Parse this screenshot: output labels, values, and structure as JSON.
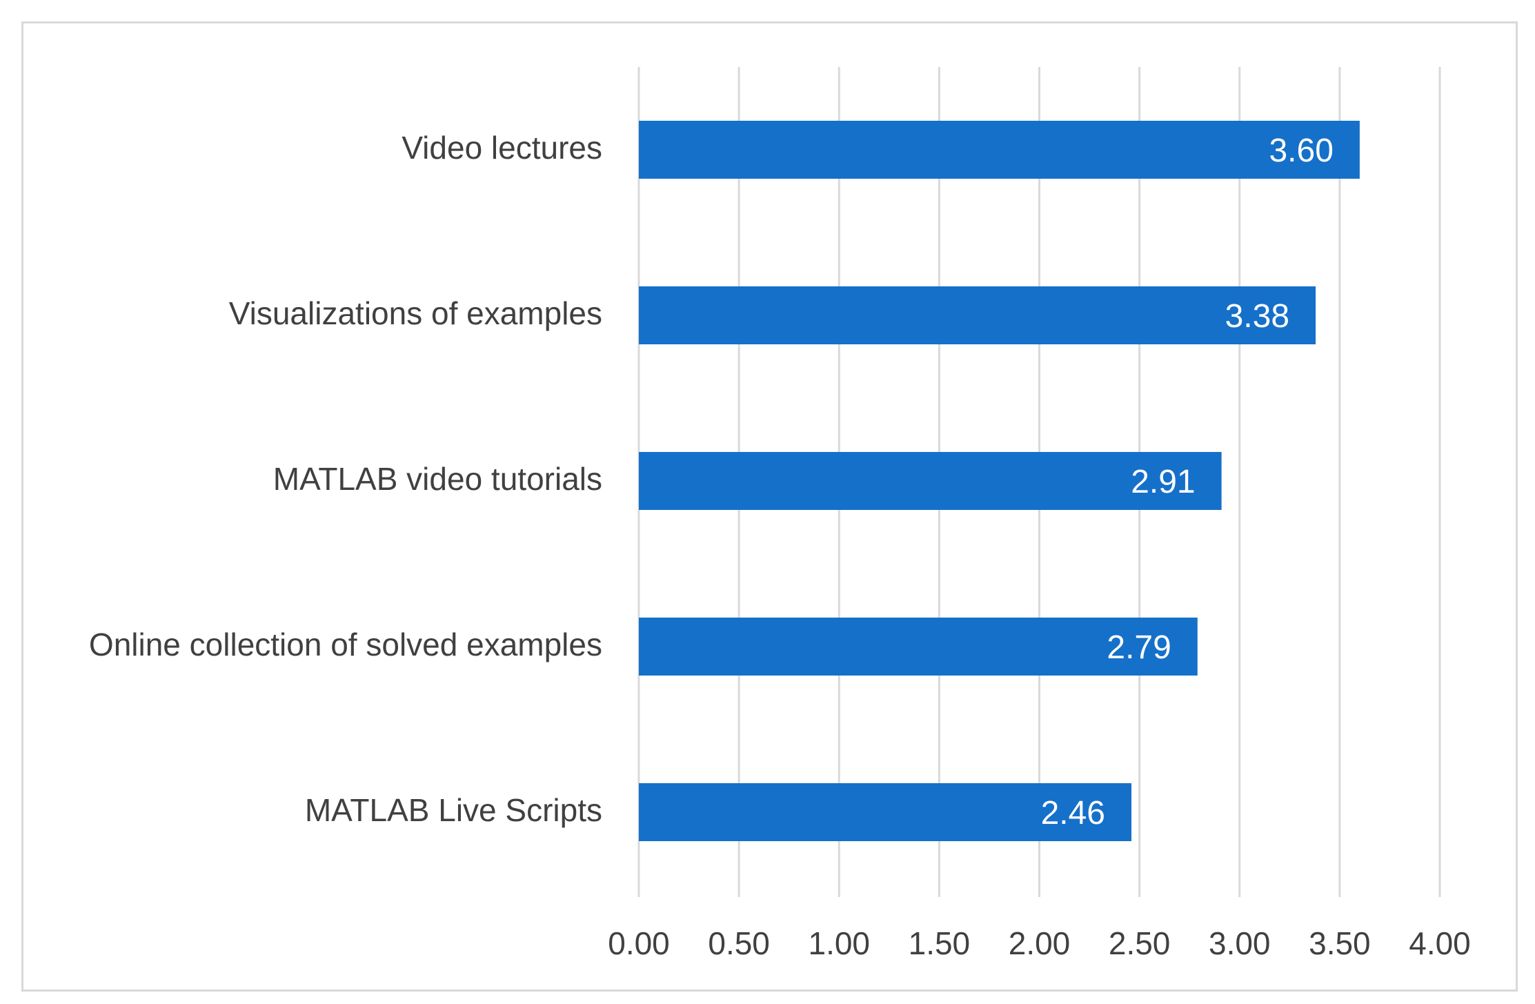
{
  "chart_data": {
    "type": "bar",
    "orientation": "horizontal",
    "categories": [
      "Video lectures",
      "Visualizations of examples",
      "MATLAB video tutorials",
      "Online collection of solved examples",
      "MATLAB Live Scripts"
    ],
    "values": [
      3.6,
      3.38,
      2.91,
      2.79,
      2.46
    ],
    "data_labels": [
      "3.60",
      "3.38",
      "2.91",
      "2.79",
      "2.46"
    ],
    "x_ticks": [
      "0.00",
      "0.50",
      "1.00",
      "1.50",
      "2.00",
      "2.50",
      "3.00",
      "3.50",
      "4.00"
    ],
    "xlim": [
      0,
      4
    ],
    "grid": true,
    "legend": "none",
    "bar_color": "#1570c9",
    "grid_color": "#d9d9d9",
    "text_color": "#404040"
  }
}
